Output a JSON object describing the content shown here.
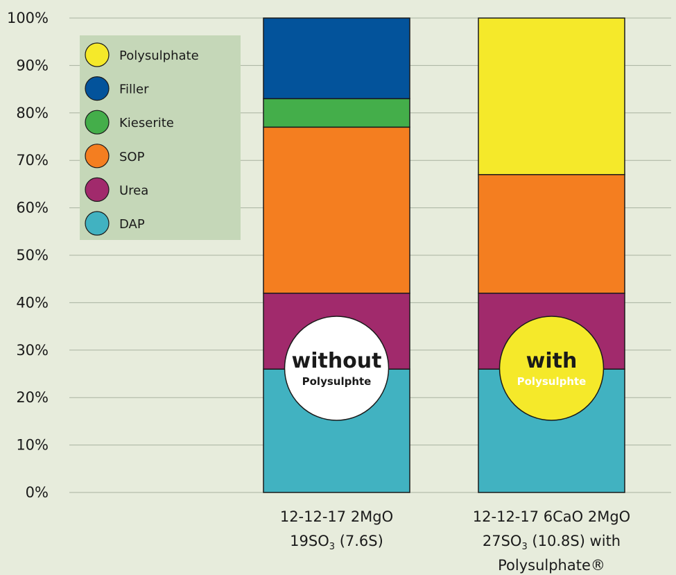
{
  "chart_data": {
    "type": "bar",
    "stacked": true,
    "y_tick_labels": [
      "0%",
      "10%",
      "20%",
      "30%",
      "40%",
      "50%",
      "60%",
      "70%",
      "80%",
      "90%",
      "100%"
    ],
    "ylim": [
      0,
      100
    ],
    "grid": true,
    "legend_position": "top-left",
    "categories": [
      {
        "lines": [
          "12-12-17 2MgO",
          "19SO₃ (7.6S)"
        ]
      },
      {
        "lines": [
          "12-12-17 6CaO 2MgO",
          "27SO₃ (10.8S) with",
          "Polysulphate®"
        ]
      }
    ],
    "series": [
      {
        "name": "DAP",
        "color": "#41b2c1",
        "values": [
          26,
          26
        ]
      },
      {
        "name": "Urea",
        "color": "#a12a6c",
        "values": [
          16,
          16
        ]
      },
      {
        "name": "SOP",
        "color": "#f47e20",
        "values": [
          35,
          25
        ]
      },
      {
        "name": "Kieserite",
        "color": "#44ae4a",
        "values": [
          6,
          0
        ]
      },
      {
        "name": "Filler",
        "color": "#03539b",
        "values": [
          17,
          0
        ]
      },
      {
        "name": "Polysulphate",
        "color": "#f5e92a",
        "values": [
          0,
          33
        ]
      }
    ],
    "legend_order": [
      "Polysulphate",
      "Filler",
      "Kieserite",
      "SOP",
      "Urea",
      "DAP"
    ],
    "annotations": [
      {
        "big": "without",
        "small": "Polysulphte",
        "fill": "#ffffff",
        "small_color": "#1a1a1a"
      },
      {
        "big": "with",
        "small": "Polysulphte",
        "fill": "#f5e92a",
        "small_color": "#ffffff"
      }
    ],
    "legend_bg": "#c5d7b8",
    "background": "#e7ecdc"
  }
}
